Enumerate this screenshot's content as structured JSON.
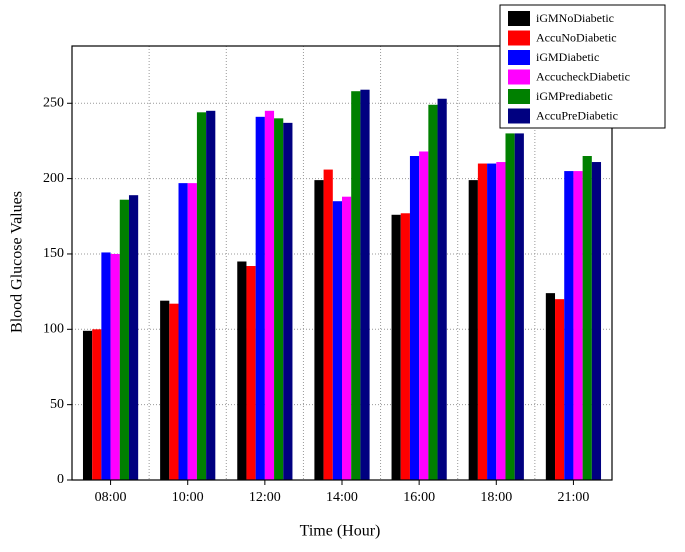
{
  "chart_data": {
    "type": "bar",
    "x_label": "Time (Hour)",
    "y_label": "Blood Glucose Values",
    "categories": [
      "08:00",
      "10:00",
      "12:00",
      "14:00",
      "16:00",
      "18:00",
      "21:00"
    ],
    "series": [
      {
        "name": "iGMNoDiabetic",
        "color": "#000000",
        "values": [
          99,
          119,
          145,
          199,
          176,
          199,
          124
        ]
      },
      {
        "name": "AccuNoDiabetic",
        "color": "#ff0000",
        "values": [
          100,
          117,
          142,
          206,
          177,
          210,
          120
        ]
      },
      {
        "name": "iGMDiabetic",
        "color": "#0000ff",
        "values": [
          151,
          197,
          241,
          185,
          215,
          210,
          205
        ]
      },
      {
        "name": "AccucheckDiabetic",
        "color": "#ff00ff",
        "values": [
          150,
          197,
          245,
          188,
          218,
          211,
          205
        ]
      },
      {
        "name": "iGMPrediabetic",
        "color": "#008000",
        "values": [
          186,
          244,
          240,
          258,
          249,
          230,
          215
        ]
      },
      {
        "name": "AccuPreDiabetic",
        "color": "#000080",
        "values": [
          189,
          245,
          237,
          259,
          253,
          230,
          211
        ]
      }
    ],
    "ylim": [
      0,
      288
    ],
    "yticks": [
      0,
      50,
      100,
      150,
      200,
      250
    ],
    "grid": true,
    "legend": "top-right"
  }
}
